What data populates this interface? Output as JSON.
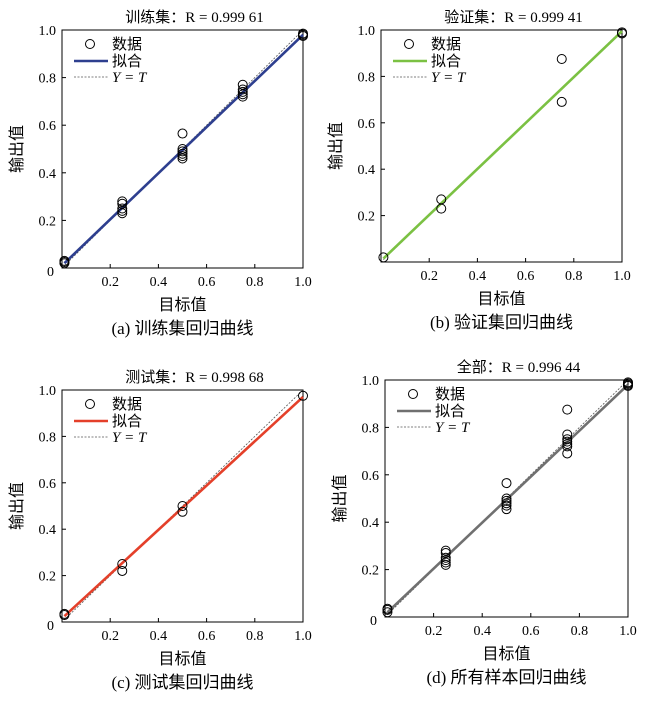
{
  "chart_data": [
    {
      "type": "scatter",
      "title": "训练集：R = 0.999 61",
      "caption": "(a) 训练集回归曲线",
      "xlabel": "目标值",
      "ylabel": "输出值",
      "xlim": [
        0,
        1
      ],
      "ylim": [
        0,
        1
      ],
      "xticks": [
        "0.2",
        "0.4",
        "0.6",
        "0.8",
        "1.0"
      ],
      "yticks": [
        "0.2",
        "0.4",
        "0.6",
        "0.8",
        "1.0"
      ],
      "origin_label": "0",
      "legend_position": "top-left",
      "fit_color": "#2e3f8f",
      "series": [
        {
          "name": "数据",
          "points": [
            [
              0.01,
              0.02
            ],
            [
              0.01,
              0.03
            ],
            [
              0.01,
              0.025
            ],
            [
              0.25,
              0.24
            ],
            [
              0.25,
              0.25
            ],
            [
              0.25,
              0.27
            ],
            [
              0.25,
              0.28
            ],
            [
              0.25,
              0.23
            ],
            [
              0.5,
              0.46
            ],
            [
              0.5,
              0.47
            ],
            [
              0.5,
              0.49
            ],
            [
              0.5,
              0.5
            ],
            [
              0.5,
              0.48
            ],
            [
              0.5,
              0.565
            ],
            [
              0.75,
              0.72
            ],
            [
              0.75,
              0.73
            ],
            [
              0.75,
              0.74
            ],
            [
              0.75,
              0.75
            ],
            [
              0.75,
              0.77
            ],
            [
              1.0,
              0.975
            ],
            [
              1.0,
              0.98
            ],
            [
              1.0,
              0.985
            ]
          ]
        },
        {
          "name": "拟合",
          "x": [
            0.01,
            1.0
          ],
          "y": [
            0.02,
            0.98
          ]
        },
        {
          "name": "Y = T",
          "x": [
            0.01,
            1.0
          ],
          "y": [
            0.01,
            1.0
          ]
        }
      ]
    },
    {
      "type": "scatter",
      "title": "验证集：R = 0.999 41",
      "caption": "(b) 验证集回归曲线",
      "xlabel": "目标值",
      "ylabel": "输出值",
      "xlim": [
        0,
        1
      ],
      "ylim": [
        0,
        1
      ],
      "xticks": [
        "0.2",
        "0.4",
        "0.6",
        "0.8",
        "1.0"
      ],
      "yticks": [
        "0.2",
        "0.4",
        "0.6",
        "0.8",
        "1.0"
      ],
      "origin_label": "",
      "legend_position": "top-left",
      "fit_color": "#7bc143",
      "series": [
        {
          "name": "数据",
          "points": [
            [
              0.01,
              0.02
            ],
            [
              0.25,
              0.23
            ],
            [
              0.25,
              0.27
            ],
            [
              0.75,
              0.69
            ],
            [
              0.75,
              0.875
            ],
            [
              1.0,
              0.99
            ],
            [
              1.0,
              0.985
            ]
          ]
        },
        {
          "name": "拟合",
          "x": [
            0.01,
            1.0
          ],
          "y": [
            0.015,
            0.995
          ]
        },
        {
          "name": "Y = T",
          "x": [
            0.01,
            1.0
          ],
          "y": [
            0.01,
            1.0
          ]
        }
      ]
    },
    {
      "type": "scatter",
      "title": "测试集：R = 0.998 68",
      "caption": "(c) 测试集回归曲线",
      "xlabel": "目标值",
      "ylabel": "输出值",
      "xlim": [
        0,
        1
      ],
      "ylim": [
        0,
        1
      ],
      "xticks": [
        "0.2",
        "0.4",
        "0.6",
        "0.8",
        "1.0"
      ],
      "yticks": [
        "0.2",
        "0.4",
        "0.6",
        "0.8",
        "1.0"
      ],
      "origin_label": "0",
      "legend_position": "top-left",
      "fit_color": "#e4402a",
      "series": [
        {
          "name": "数据",
          "points": [
            [
              0.01,
              0.03
            ],
            [
              0.01,
              0.035
            ],
            [
              0.25,
              0.22
            ],
            [
              0.25,
              0.25
            ],
            [
              0.5,
              0.475
            ],
            [
              0.5,
              0.5
            ],
            [
              1.0,
              0.975
            ]
          ]
        },
        {
          "name": "拟合",
          "x": [
            0.01,
            1.0
          ],
          "y": [
            0.025,
            0.97
          ]
        },
        {
          "name": "Y = T",
          "x": [
            0.01,
            1.0
          ],
          "y": [
            0.01,
            1.0
          ]
        }
      ]
    },
    {
      "type": "scatter",
      "title": "全部：R = 0.996 44",
      "caption": "(d) 所有样本回归曲线",
      "xlabel": "目标值",
      "ylabel": "输出值",
      "xlim": [
        0,
        1
      ],
      "ylim": [
        0,
        1
      ],
      "xticks": [
        "0.2",
        "0.4",
        "0.6",
        "0.8",
        "1.0"
      ],
      "yticks": [
        "0.2",
        "0.4",
        "0.6",
        "0.8",
        "1.0"
      ],
      "origin_label": "0",
      "legend_position": "top-left",
      "fit_color": "#707070",
      "series": [
        {
          "name": "数据",
          "points": [
            [
              0.01,
              0.02
            ],
            [
              0.01,
              0.03
            ],
            [
              0.01,
              0.035
            ],
            [
              0.25,
              0.22
            ],
            [
              0.25,
              0.23
            ],
            [
              0.25,
              0.24
            ],
            [
              0.25,
              0.25
            ],
            [
              0.25,
              0.27
            ],
            [
              0.25,
              0.28
            ],
            [
              0.5,
              0.455
            ],
            [
              0.5,
              0.47
            ],
            [
              0.5,
              0.48
            ],
            [
              0.5,
              0.49
            ],
            [
              0.5,
              0.5
            ],
            [
              0.5,
              0.565
            ],
            [
              0.75,
              0.69
            ],
            [
              0.75,
              0.72
            ],
            [
              0.75,
              0.73
            ],
            [
              0.75,
              0.74
            ],
            [
              0.75,
              0.75
            ],
            [
              0.75,
              0.77
            ],
            [
              0.75,
              0.875
            ],
            [
              1.0,
              0.975
            ],
            [
              1.0,
              0.98
            ],
            [
              1.0,
              0.985
            ],
            [
              1.0,
              0.99
            ]
          ]
        },
        {
          "name": "拟合",
          "x": [
            0.01,
            1.0
          ],
          "y": [
            0.02,
            0.98
          ]
        },
        {
          "name": "Y = T",
          "x": [
            0.01,
            1.0
          ],
          "y": [
            0.01,
            1.0
          ]
        }
      ]
    }
  ]
}
